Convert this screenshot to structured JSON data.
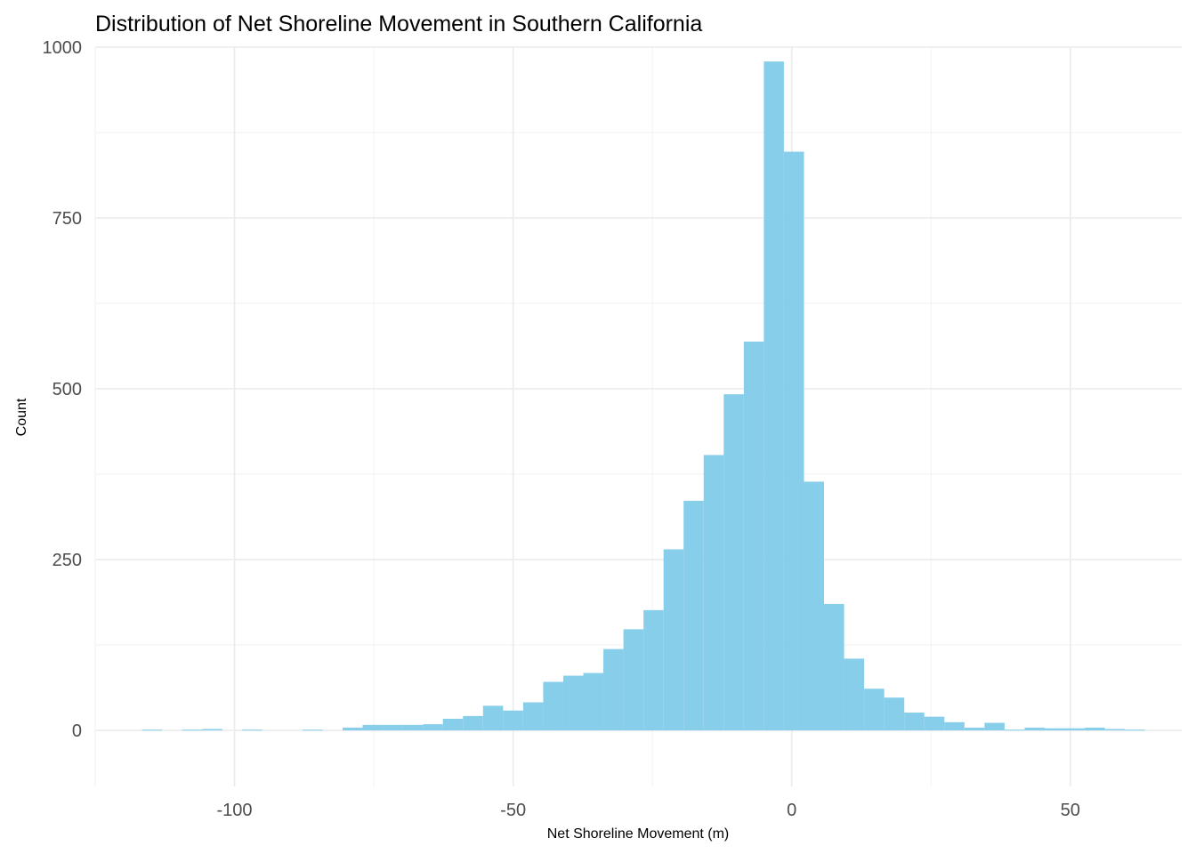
{
  "chart_data": {
    "type": "bar",
    "title": "Distribution of Net Shoreline Movement in Southern California",
    "xlabel": "Net Shoreline Movement (m)",
    "ylabel": "Count",
    "xlim": [
      -125,
      70
    ],
    "ylim": [
      -82,
      1000
    ],
    "x_ticks": [
      -100,
      -50,
      0,
      50
    ],
    "x_tick_labels": [
      "-100",
      "-50",
      "0",
      "50"
    ],
    "y_ticks": [
      0,
      250,
      500,
      750,
      1000
    ],
    "y_tick_labels": [
      "0",
      "250",
      "500",
      "750",
      "1000"
    ],
    "grid": true,
    "legend": "none",
    "bar_color": "#87CEEB",
    "bin_width": 3.6,
    "bin_starts": [
      -116.6,
      -113.0,
      -109.4,
      -105.8,
      -102.2,
      -98.6,
      -95.0,
      -91.4,
      -87.8,
      -84.2,
      -80.6,
      -77.0,
      -73.4,
      -69.8,
      -66.2,
      -62.6,
      -59.0,
      -55.4,
      -51.8,
      -48.2,
      -44.6,
      -41.0,
      -37.4,
      -33.8,
      -30.2,
      -26.6,
      -23.0,
      -19.4,
      -15.8,
      -12.2,
      -8.6,
      -5.0,
      -1.4,
      2.2,
      5.8,
      9.4,
      13.0,
      16.6,
      20.2,
      23.8,
      27.4,
      31.0,
      34.6,
      38.2,
      41.8,
      45.4,
      49.0,
      52.6,
      56.2,
      59.8
    ],
    "values": [
      1,
      0,
      1,
      2,
      0,
      1,
      0,
      0,
      1,
      0,
      4,
      8,
      8,
      8,
      9,
      17,
      21,
      36,
      29,
      41,
      71,
      80,
      84,
      119,
      148,
      176,
      265,
      336,
      403,
      492,
      569,
      979,
      847,
      364,
      185,
      105,
      61,
      48,
      26,
      20,
      12,
      4,
      11,
      1,
      4,
      3,
      3,
      4,
      2,
      1
    ]
  }
}
